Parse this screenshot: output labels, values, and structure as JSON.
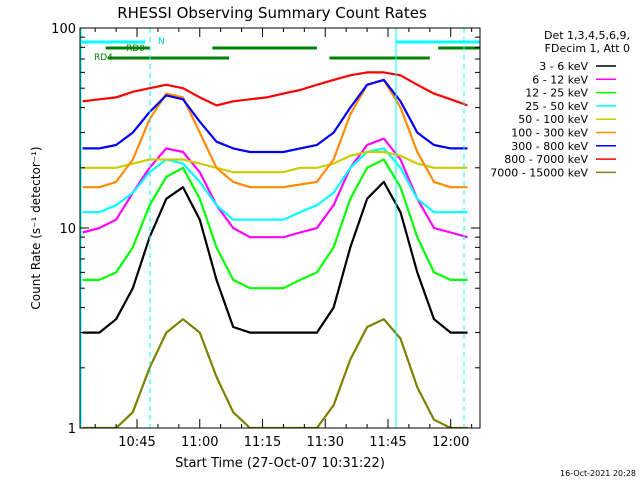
{
  "chart_data": {
    "type": "line",
    "title": "RHESSI Observing Summary Count Rates",
    "xlabel": "Start Time (27-Oct-07 10:31:22)",
    "ylabel": "Count Rate (s⁻¹ detector⁻¹)",
    "y_scale": "log",
    "ylim": [
      1,
      100
    ],
    "xlim": [
      "10:31:22",
      "12:07:00"
    ],
    "x_ticks": [
      "10:45",
      "11:00",
      "11:15",
      "11:30",
      "11:45",
      "12:00"
    ],
    "y_ticks": [
      "1",
      "10",
      "100"
    ],
    "footer": "16-Oct-2021 20:28",
    "legend": {
      "position": "right",
      "header1": "Det 1,3,4,5,6,9,",
      "header2": "FDecim 1, Att 0"
    },
    "flags": [
      {
        "name": "N",
        "color": "#00ffff",
        "segments": [
          [
            "10:31:22",
            "10:47:00"
          ],
          [
            "11:47:00",
            "12:07:00"
          ]
        ]
      },
      {
        "name": "RD0",
        "color": "#008000",
        "segments": [
          [
            "10:37:30",
            "10:48:00"
          ],
          [
            "11:03:00",
            "11:28:00"
          ],
          [
            "11:57:00",
            "12:07:00"
          ]
        ]
      },
      {
        "name": "RD4",
        "color": "#008000",
        "segments": [
          [
            "10:38:00",
            "11:07:00"
          ],
          [
            "11:31:00",
            "11:55:00"
          ]
        ]
      }
    ],
    "series": [
      {
        "name": "3 - 6 keV",
        "color": "#000000",
        "x": [
          "10:32",
          "10:36",
          "10:40",
          "10:44",
          "10:48",
          "10:52",
          "10:56",
          "11:00",
          "11:04",
          "11:08",
          "11:12",
          "11:16",
          "11:20",
          "11:24",
          "11:28",
          "11:32",
          "11:36",
          "11:40",
          "11:44",
          "11:48",
          "11:52",
          "11:56",
          "12:00",
          "12:04"
        ],
        "values": [
          3,
          3,
          3.5,
          5,
          9,
          14,
          16,
          11,
          5.5,
          3.2,
          3,
          3,
          3,
          3,
          3,
          4,
          8,
          14,
          17,
          12,
          6,
          3.5,
          3,
          3
        ]
      },
      {
        "name": "6 - 12 keV",
        "color": "#ff00ff",
        "x": [
          "10:32",
          "10:36",
          "10:40",
          "10:44",
          "10:48",
          "10:52",
          "10:56",
          "11:00",
          "11:04",
          "11:08",
          "11:12",
          "11:16",
          "11:20",
          "11:24",
          "11:28",
          "11:32",
          "11:36",
          "11:40",
          "11:44",
          "11:48",
          "11:52",
          "11:56",
          "12:00",
          "12:04"
        ],
        "values": [
          9.5,
          10,
          11,
          15,
          20,
          25,
          24,
          19,
          13,
          10,
          9,
          9,
          9,
          9.5,
          10,
          13,
          20,
          26,
          28,
          22,
          14,
          10,
          9.5,
          9
        ]
      },
      {
        "name": "12 - 25 keV",
        "color": "#00ff00",
        "x": [
          "10:32",
          "10:36",
          "10:40",
          "10:44",
          "10:48",
          "10:52",
          "10:56",
          "11:00",
          "11:04",
          "11:08",
          "11:12",
          "11:16",
          "11:20",
          "11:24",
          "11:28",
          "11:32",
          "11:36",
          "11:40",
          "11:44",
          "11:48",
          "11:52",
          "11:56",
          "12:00",
          "12:04"
        ],
        "values": [
          5.5,
          5.5,
          6,
          8,
          13,
          18,
          20,
          14,
          8,
          5.5,
          5,
          5,
          5,
          5.5,
          6,
          8,
          14,
          20,
          22,
          16,
          9,
          6,
          5.5,
          5.5
        ]
      },
      {
        "name": "25 - 50 keV",
        "color": "#00ffff",
        "x": [
          "10:32",
          "10:36",
          "10:40",
          "10:44",
          "10:48",
          "10:52",
          "10:56",
          "11:00",
          "11:04",
          "11:08",
          "11:12",
          "11:16",
          "11:20",
          "11:24",
          "11:28",
          "11:32",
          "11:36",
          "11:40",
          "11:44",
          "11:48",
          "11:52",
          "11:56",
          "12:00",
          "12:04"
        ],
        "values": [
          12,
          12,
          13,
          15,
          19,
          22,
          21,
          17,
          13,
          11,
          11,
          11,
          11,
          12,
          13,
          15,
          20,
          24,
          25,
          20,
          14,
          12,
          12,
          12
        ]
      },
      {
        "name": "50 - 100 keV",
        "color": "#cccc00",
        "x": [
          "10:32",
          "10:36",
          "10:40",
          "10:44",
          "10:48",
          "10:52",
          "10:56",
          "11:00",
          "11:04",
          "11:08",
          "11:12",
          "11:16",
          "11:20",
          "11:24",
          "11:28",
          "11:32",
          "11:36",
          "11:40",
          "11:44",
          "11:48",
          "11:52",
          "11:56",
          "12:00",
          "12:04"
        ],
        "values": [
          20,
          20,
          20,
          21,
          22,
          22,
          22,
          21,
          20,
          19,
          19,
          19,
          19,
          20,
          20,
          21,
          23,
          24,
          24,
          23,
          21,
          20,
          20,
          20
        ]
      },
      {
        "name": "100 - 300 keV",
        "color": "#ff8c00",
        "x": [
          "10:32",
          "10:36",
          "10:40",
          "10:44",
          "10:48",
          "10:52",
          "10:56",
          "11:00",
          "11:04",
          "11:08",
          "11:12",
          "11:16",
          "11:20",
          "11:24",
          "11:28",
          "11:32",
          "11:36",
          "11:40",
          "11:44",
          "11:48",
          "11:52",
          "11:56",
          "12:00",
          "12:04"
        ],
        "values": [
          16,
          16,
          17,
          22,
          35,
          47,
          45,
          30,
          20,
          17,
          16,
          16,
          16,
          16.5,
          17,
          22,
          37,
          52,
          55,
          40,
          24,
          17,
          16,
          16
        ]
      },
      {
        "name": "300 - 800 keV",
        "color": "#0000ff",
        "x": [
          "10:32",
          "10:36",
          "10:40",
          "10:44",
          "10:48",
          "10:52",
          "10:56",
          "11:00",
          "11:04",
          "11:08",
          "11:12",
          "11:16",
          "11:20",
          "11:24",
          "11:28",
          "11:32",
          "11:36",
          "11:40",
          "11:44",
          "11:48",
          "11:52",
          "11:56",
          "12:00",
          "12:04"
        ],
        "values": [
          25,
          25,
          26,
          30,
          38,
          46,
          44,
          34,
          27,
          25,
          24,
          24,
          24,
          25,
          26,
          30,
          40,
          52,
          55,
          43,
          30,
          26,
          25,
          25
        ]
      },
      {
        "name": "800 - 7000 keV",
        "color": "#ff0000",
        "x": [
          "10:32",
          "10:36",
          "10:40",
          "10:44",
          "10:48",
          "10:52",
          "10:56",
          "11:00",
          "11:04",
          "11:08",
          "11:12",
          "11:16",
          "11:20",
          "11:24",
          "11:28",
          "11:32",
          "11:36",
          "11:40",
          "11:44",
          "11:48",
          "11:52",
          "11:56",
          "12:00",
          "12:04"
        ],
        "values": [
          43,
          44,
          45,
          48,
          50,
          52,
          50,
          45,
          41,
          43,
          44,
          45,
          47,
          49,
          52,
          55,
          58,
          60,
          60,
          58,
          52,
          47,
          44,
          41
        ]
      },
      {
        "name": "7000 - 15000 keV",
        "color": "#808000",
        "x": [
          "10:32",
          "10:36",
          "10:40",
          "10:44",
          "10:48",
          "10:52",
          "10:56",
          "11:00",
          "11:04",
          "11:08",
          "11:12",
          "11:16",
          "11:20",
          "11:24",
          "11:28",
          "11:32",
          "11:36",
          "11:40",
          "11:44",
          "11:48",
          "11:52",
          "11:56",
          "12:00",
          "12:04"
        ],
        "values": [
          1,
          1,
          1,
          1.2,
          2,
          3,
          3.5,
          3,
          1.8,
          1.2,
          1,
          1,
          1,
          1,
          1,
          1.3,
          2.2,
          3.2,
          3.5,
          2.8,
          1.6,
          1.1,
          1,
          1
        ]
      }
    ]
  }
}
